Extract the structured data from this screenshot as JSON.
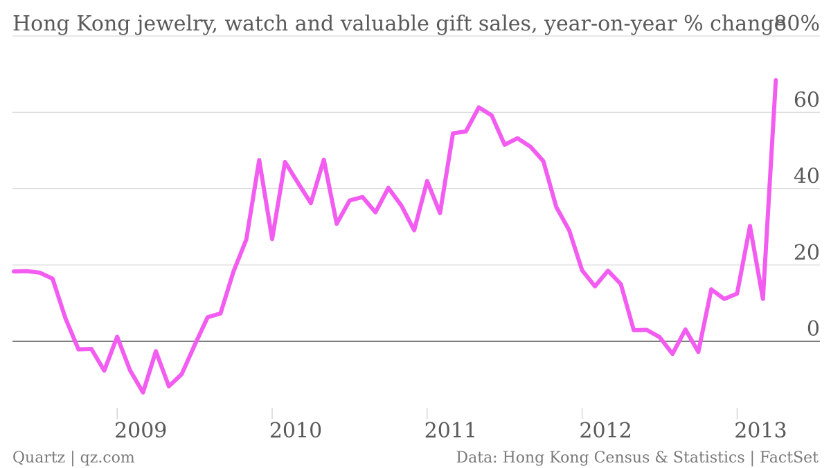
{
  "chart_data": {
    "type": "line",
    "title": "Hong Kong jewelry, watch and valuable gift sales, year-on-year % change",
    "xlabel": "",
    "ylabel": "",
    "y_unit_label": "80%",
    "ylim": [
      -20,
      80
    ],
    "yticks": [
      0,
      20,
      40,
      60
    ],
    "ytick_labels": [
      "0",
      "20",
      "40",
      "60"
    ],
    "xticks": [
      "2009",
      "2010",
      "2011",
      "2012",
      "2013"
    ],
    "grid": "horizontal",
    "series": [
      {
        "color": "#f25cf0",
        "x": [
          "2008-05",
          "2008-06",
          "2008-07",
          "2008-08",
          "2008-09",
          "2008-10",
          "2008-11",
          "2008-12",
          "2009-01",
          "2009-02",
          "2009-03",
          "2009-04",
          "2009-05",
          "2009-06",
          "2009-07",
          "2009-08",
          "2009-09",
          "2009-10",
          "2009-11",
          "2009-12",
          "2010-01",
          "2010-02",
          "2010-03",
          "2010-04",
          "2010-05",
          "2010-06",
          "2010-07",
          "2010-08",
          "2010-09",
          "2010-10",
          "2010-11",
          "2010-12",
          "2011-01",
          "2011-02",
          "2011-03",
          "2011-04",
          "2011-05",
          "2011-06",
          "2011-07",
          "2011-08",
          "2011-09",
          "2011-10",
          "2011-11",
          "2011-12",
          "2012-01",
          "2012-02",
          "2012-03",
          "2012-04",
          "2012-05",
          "2012-06",
          "2012-07",
          "2012-08",
          "2012-09",
          "2012-10",
          "2012-11",
          "2012-12",
          "2013-01",
          "2013-02",
          "2013-03",
          "2013-04"
        ],
        "values": [
          18.3,
          18.4,
          18.0,
          16.4,
          6.0,
          -2.1,
          -2.0,
          -7.7,
          1.2,
          -7.6,
          -13.4,
          -2.6,
          -11.8,
          -8.6,
          -1.0,
          6.3,
          7.3,
          18.2,
          26.7,
          47.5,
          26.8,
          47.0,
          41.5,
          36.2,
          47.6,
          30.8,
          36.9,
          37.8,
          33.8,
          40.2,
          35.6,
          29.1,
          42.0,
          33.6,
          54.5,
          55.0,
          61.3,
          59.2,
          51.5,
          53.2,
          51.0,
          47.2,
          35.2,
          29.1,
          18.6,
          14.4,
          18.5,
          15.0,
          2.9,
          3.0,
          1.1,
          -3.3,
          3.1,
          -2.8,
          13.6,
          11.1,
          12.5,
          30.2,
          11.1,
          68.4
        ]
      }
    ]
  },
  "footer": {
    "source_left": "Quartz | qz.com",
    "source_right": "Data: Hong Kong Census & Statistics | FactSet"
  }
}
